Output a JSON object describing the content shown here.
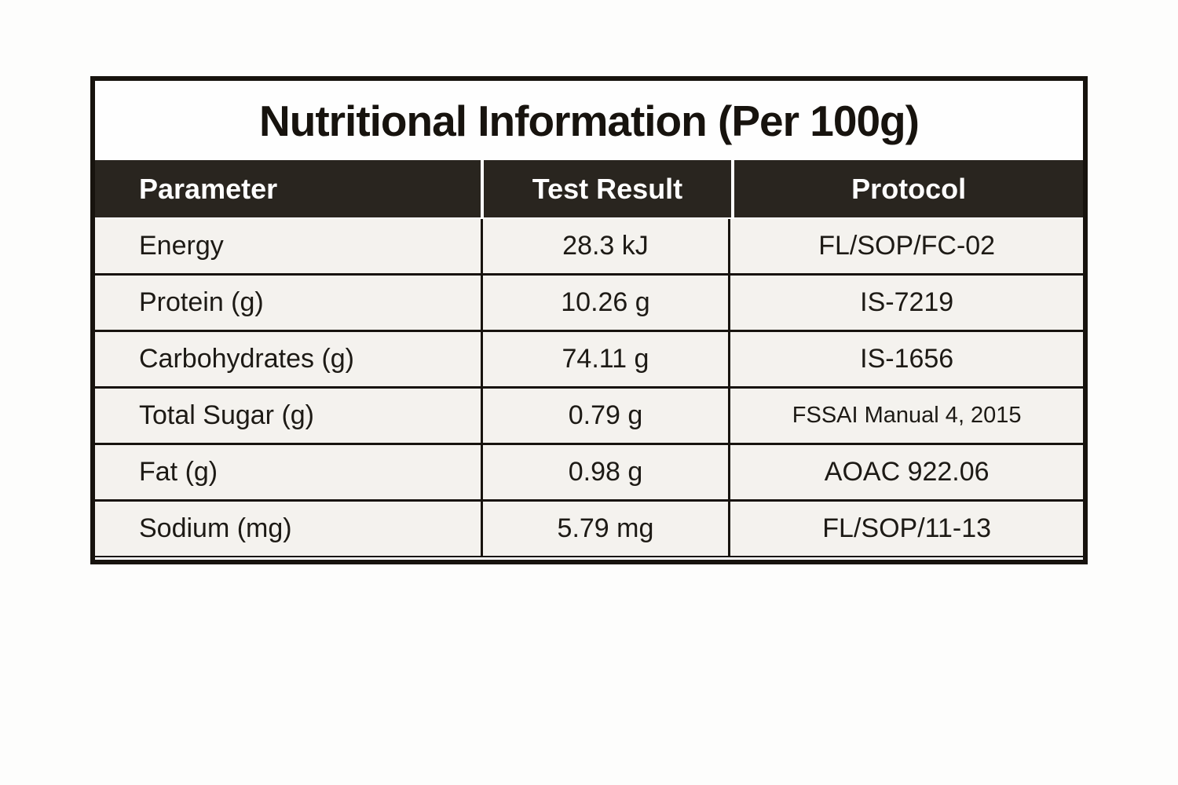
{
  "table": {
    "title": "Nutritional Information (Per 100g)",
    "columns": {
      "parameter": "Parameter",
      "result": "Test Result",
      "protocol": "Protocol"
    },
    "rows": [
      {
        "parameter": "Energy",
        "result": "28.3 kJ",
        "protocol": "FL/SOP/FC-02"
      },
      {
        "parameter": "Protein (g)",
        "result": "10.26 g",
        "protocol": "IS-7219"
      },
      {
        "parameter": "Carbohydrates (g)",
        "result": "74.11 g",
        "protocol": "IS-1656"
      },
      {
        "parameter": "Total Sugar (g)",
        "result": "0.79 g",
        "protocol": "FSSAI Manual 4, 2015"
      },
      {
        "parameter": "Fat (g)",
        "result": "0.98 g",
        "protocol": "AOAC 922.06"
      },
      {
        "parameter": "Sodium (mg)",
        "result": "5.79 mg",
        "protocol": "FL/SOP/11-13"
      }
    ],
    "colors": {
      "header_background": "#29251f",
      "row_background": "#f4f2ee",
      "border": "#17130e",
      "header_text": "#ffffff",
      "body_text": "#1d1a15"
    }
  }
}
